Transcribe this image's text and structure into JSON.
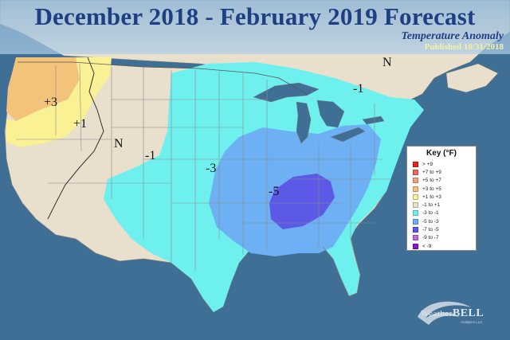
{
  "header": {
    "title": "December 2018 - February 2019 Forecast",
    "subtitle": "Temperature Anomaly",
    "published": "Published 10/31/2018"
  },
  "colors": {
    "ocean": "#3f6f94",
    "neutral": "#e8dfcd",
    "warm_1_3": "#f9f193",
    "warm_3_5": "#f3c27b",
    "cool_3_1": "#6ef0ee",
    "cool_5_3": "#6db0f4",
    "cool_7_5": "#5b59e6",
    "border": "#7d7d7d"
  },
  "map_labels": {
    "west_plus3": "+3",
    "west_plus1": "+1",
    "west_n": "N",
    "plains_minus1": "-1",
    "central_minus3": "-3",
    "south_minus5": "-5",
    "northeast_minus1": "-1",
    "northeast_n": "N"
  },
  "legend": {
    "title": "Key (°F)",
    "items": [
      {
        "label": "> +9",
        "color": "#e8201e"
      },
      {
        "label": "+7 to +9",
        "color": "#f2655f"
      },
      {
        "label": "+5 to +7",
        "color": "#f4a07b"
      },
      {
        "label": "+3 to +5",
        "color": "#f3c27b"
      },
      {
        "label": "+1 to +3",
        "color": "#f9f193"
      },
      {
        "label": "-1 to +1",
        "color": "#e8dfcd"
      },
      {
        "label": "-3 to -1",
        "color": "#6ef0ee"
      },
      {
        "label": "-5 to -3",
        "color": "#6db0f4"
      },
      {
        "label": "-7 to -5",
        "color": "#5b59e6"
      },
      {
        "label": "-9 to -7",
        "color": "#c064e8"
      },
      {
        "label": "< -9",
        "color": "#8a16c9"
      }
    ]
  },
  "logo": {
    "brand_prefix": "Weather",
    "brand_suffix": "BELL",
    "tagline": "Analytics LLC"
  }
}
